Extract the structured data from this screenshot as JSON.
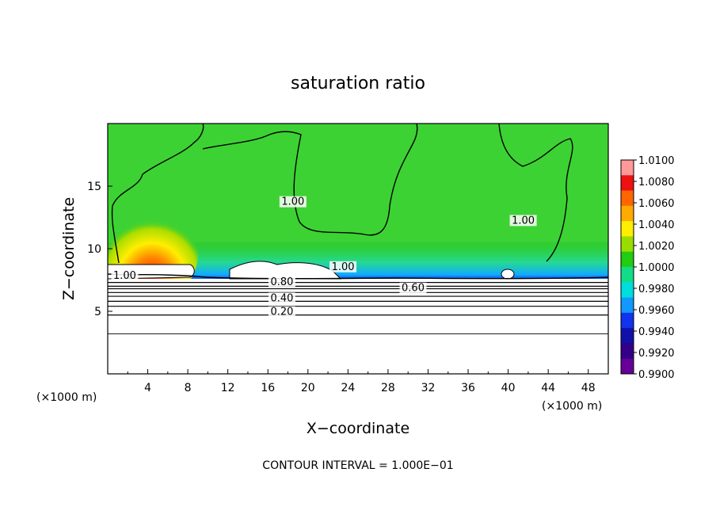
{
  "chart_data": {
    "type": "heatmap",
    "title": "saturation ratio",
    "xlabel": "X−coordinate",
    "ylabel": "Z−coordinate",
    "x_unit_left": "(×1000 m)",
    "x_unit_right": "(×1000 m)",
    "footer": "CONTOUR INTERVAL = 1.000E−01",
    "xlim": [
      0,
      50
    ],
    "ylim": [
      0,
      20
    ],
    "x_ticks": [
      "4",
      "8",
      "12",
      "16",
      "20",
      "24",
      "28",
      "32",
      "36",
      "40",
      "44",
      "48"
    ],
    "y_ticks": [
      "5",
      "10",
      "15"
    ],
    "colorbar": {
      "min": 0.99,
      "max": 1.01,
      "labels": [
        "1.0100",
        "1.0080",
        "1.0060",
        "1.0040",
        "1.0020",
        "1.0000",
        "0.9980",
        "0.9960",
        "0.9940",
        "0.9920",
        "0.9900"
      ],
      "colors": [
        "#ff9999",
        "#ee1111",
        "#ff6600",
        "#ffaa00",
        "#ffee00",
        "#99dd00",
        "#22cc11",
        "#11dd88",
        "#00dddd",
        "#1199ff",
        "#1133ee",
        "#1111aa",
        "#330088",
        "#660099"
      ]
    },
    "contour_labels": [
      {
        "text": "1.00",
        "x": 1.7,
        "z": 7.6
      },
      {
        "text": "0.80",
        "x": 17.4,
        "z": 7.1
      },
      {
        "text": "0.40",
        "x": 17.4,
        "z": 5.8
      },
      {
        "text": "0.20",
        "x": 17.4,
        "z": 4.7
      },
      {
        "text": "0.60",
        "x": 30.5,
        "z": 6.6
      },
      {
        "text": "1.00",
        "x": 18.5,
        "z": 13.5
      },
      {
        "text": "1.00",
        "x": 41.5,
        "z": 12.0
      },
      {
        "text": "1.00",
        "x": 23.5,
        "z": 8.3
      }
    ],
    "horizontal_contours_z": [
      3.2,
      4.7,
      5.4,
      5.8,
      6.2,
      6.5,
      6.8,
      7.0,
      7.3
    ]
  }
}
